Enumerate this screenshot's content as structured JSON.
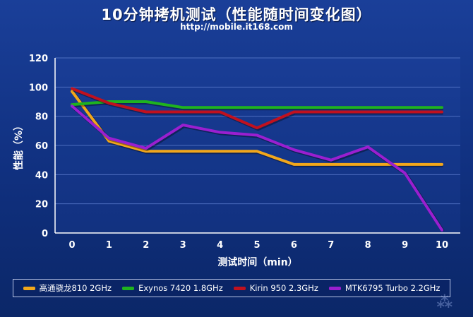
{
  "header": {
    "title": "10分钟拷机测试（性能随时间变化图）",
    "subtitle": "http://mobile.it168.com"
  },
  "chart_data": {
    "type": "line",
    "title": "10分钟拷机测试（性能随时间变化图）",
    "xlabel": "测试时间（min）",
    "ylabel": "性能（%）",
    "x": [
      0,
      1,
      2,
      3,
      4,
      5,
      6,
      7,
      8,
      9,
      10
    ],
    "xlim": [
      0,
      10
    ],
    "ylim": [
      0,
      120
    ],
    "yticks": [
      0,
      20,
      40,
      60,
      80,
      100,
      120
    ],
    "grid": true,
    "legend_position": "bottom",
    "series": [
      {
        "name": "高通骁龙810 2GHz",
        "color": "#f2a71b",
        "values": [
          97,
          63,
          56,
          56,
          56,
          56,
          47,
          47,
          47,
          47,
          47
        ]
      },
      {
        "name": "Exynos 7420 1.8GHz",
        "color": "#1fb31f",
        "values": [
          88,
          90,
          90,
          86,
          86,
          86,
          86,
          86,
          86,
          86,
          86
        ]
      },
      {
        "name": "Kirin 950 2.3GHz",
        "color": "#c0111f",
        "values": [
          99,
          89,
          83,
          83,
          83,
          72,
          83,
          83,
          83,
          83,
          83
        ]
      },
      {
        "name": "MTK6795 Turbo 2.2GHz",
        "color": "#9a1fd0",
        "values": [
          87,
          65,
          58,
          74,
          69,
          67,
          57,
          50,
          59,
          41,
          2
        ]
      }
    ]
  }
}
